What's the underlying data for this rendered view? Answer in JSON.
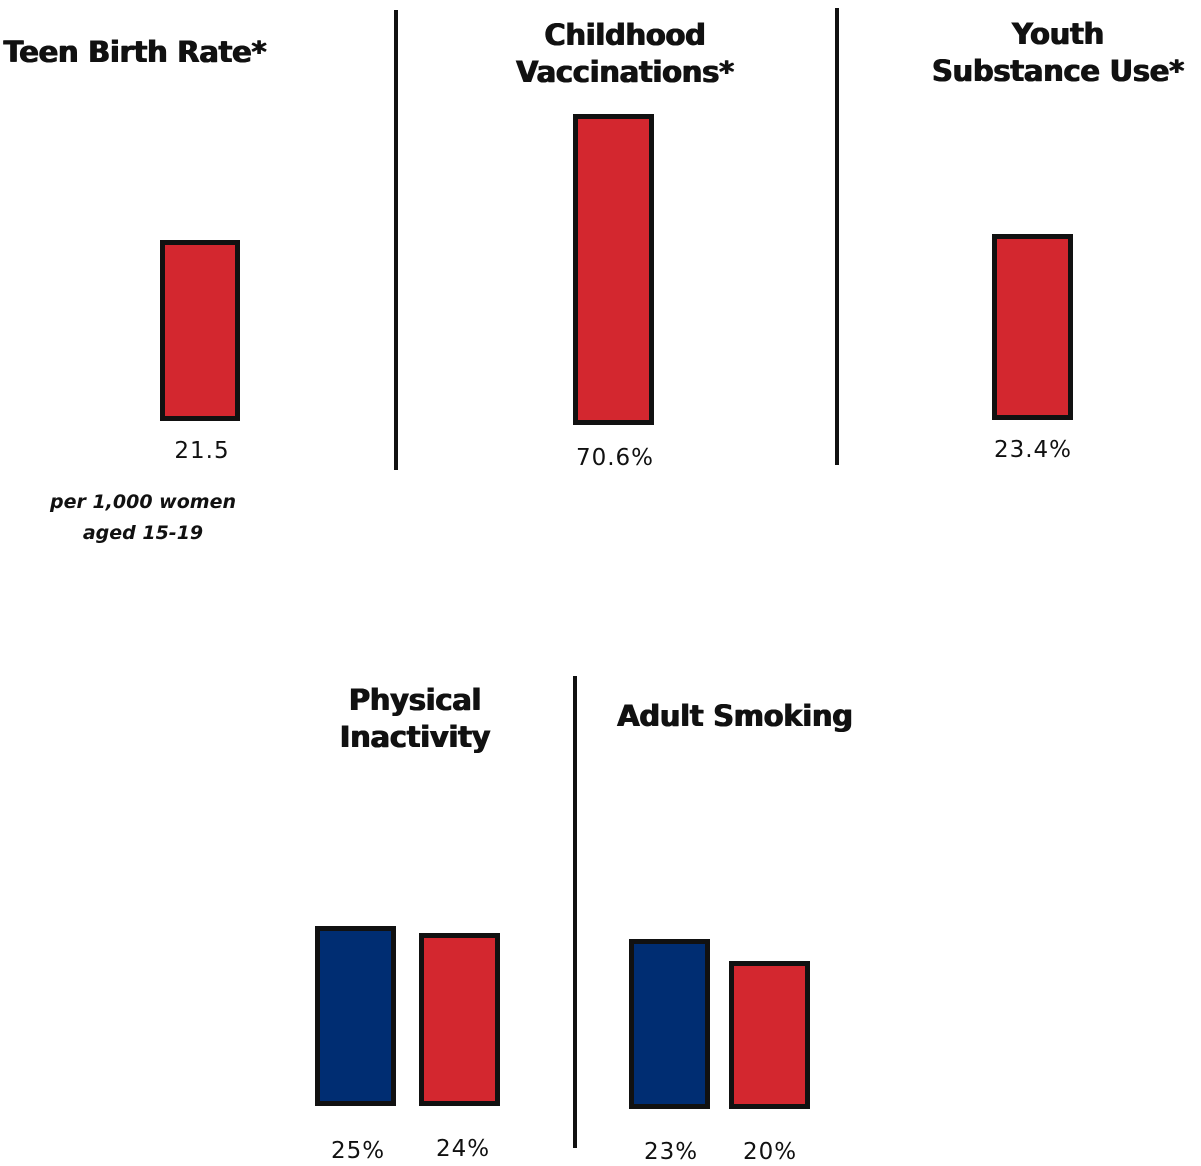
{
  "chart_data": [
    {
      "type": "bar",
      "title": "Teen Birth Rate*",
      "categories": [
        ""
      ],
      "series": [
        {
          "values": [
            21.5
          ],
          "color": "#d3272f"
        }
      ],
      "value_labels": [
        "21.5"
      ],
      "note": "per 1,000 women aged 15-19"
    },
    {
      "type": "bar",
      "title": "Childhood Vaccinations*",
      "categories": [
        ""
      ],
      "series": [
        {
          "values": [
            70.6
          ],
          "color": "#d3272f"
        }
      ],
      "value_labels": [
        "70.6%"
      ]
    },
    {
      "type": "bar",
      "title": "Youth Substance Use*",
      "categories": [
        ""
      ],
      "series": [
        {
          "values": [
            23.4
          ],
          "color": "#d3272f"
        }
      ],
      "value_labels": [
        "23.4%"
      ]
    },
    {
      "type": "bar",
      "title": "Physical Inactivity",
      "categories": [
        "",
        ""
      ],
      "series": [
        {
          "values": [
            25,
            24
          ]
        }
      ],
      "colors": [
        "#002d72",
        "#d3272f"
      ],
      "value_labels": [
        "25%",
        "24%"
      ]
    },
    {
      "type": "bar",
      "title": "Adult Smoking",
      "categories": [
        "",
        ""
      ],
      "series": [
        {
          "values": [
            23,
            20
          ]
        }
      ],
      "colors": [
        "#002d72",
        "#d3272f"
      ],
      "value_labels": [
        "23%",
        "20%"
      ]
    }
  ]
}
